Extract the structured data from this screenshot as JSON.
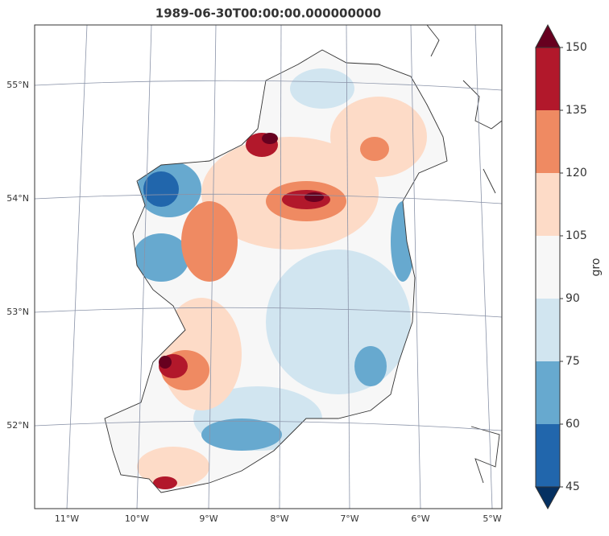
{
  "title": "1989-06-30T00:00:00.000000000",
  "lat_labels": [
    "55°N",
    "54°N",
    "53°N",
    "52°N"
  ],
  "lon_labels": [
    "11°W",
    "10°W",
    "9°W",
    "8°W",
    "7°W",
    "6°W",
    "5°W"
  ],
  "colorbar": {
    "label": "gro",
    "ticks": [
      45,
      60,
      75,
      90,
      105,
      120,
      135,
      150
    ],
    "colors": [
      "#2166ac",
      "#67a9cf",
      "#d1e5f0",
      "#f7f7f7",
      "#fddbc7",
      "#ef8a62",
      "#b2182b"
    ],
    "under_color": "#053061",
    "over_color": "#67001f"
  }
}
